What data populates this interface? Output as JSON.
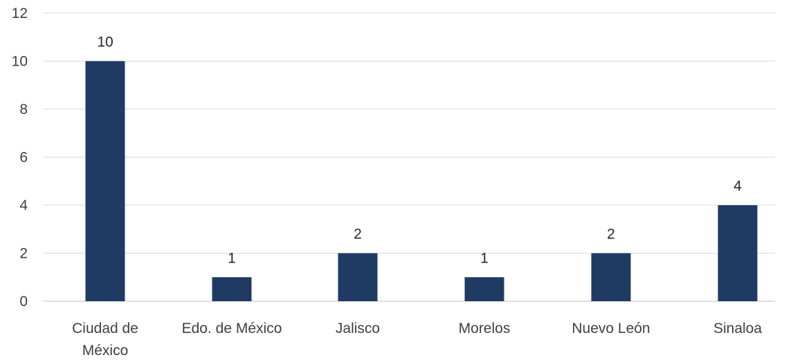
{
  "chart_data": {
    "type": "bar",
    "categories": [
      [
        "Ciudad de",
        "México"
      ],
      [
        "Edo. de México"
      ],
      [
        "Jalisco"
      ],
      [
        "Morelos"
      ],
      [
        "Nuevo León"
      ],
      [
        "Sinaloa"
      ]
    ],
    "values": [
      10,
      1,
      2,
      1,
      2,
      4
    ],
    "data_labels": [
      "10",
      "1",
      "2",
      "1",
      "2",
      "4"
    ],
    "yticks": [
      0,
      2,
      4,
      6,
      8,
      10,
      12
    ],
    "ylim": [
      0,
      12
    ],
    "title": "",
    "xlabel": "",
    "ylabel": "",
    "grid": true,
    "legend": "none",
    "bar_color": "#1f3b64"
  }
}
